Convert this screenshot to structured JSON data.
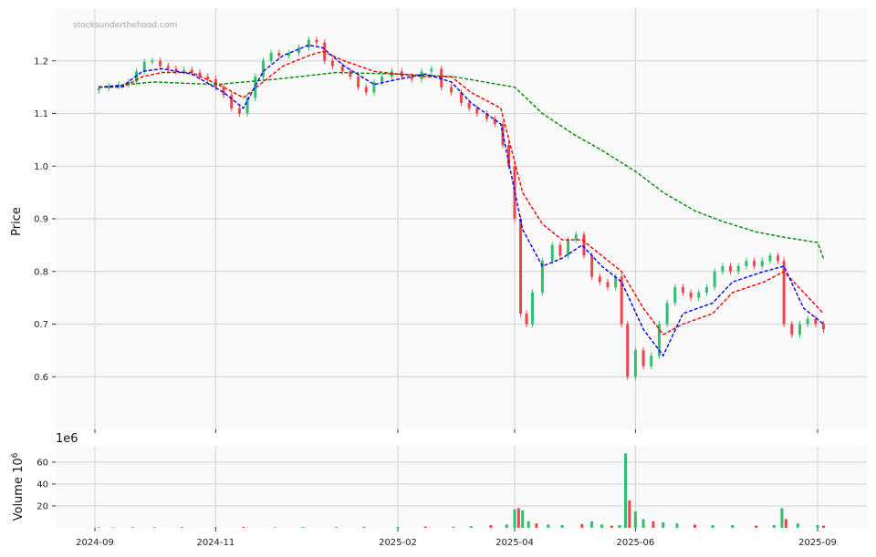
{
  "watermark": "stocksunderthehood.com",
  "colors": {
    "up": "#2fbf71",
    "down": "#e8474b",
    "ma_short": "#0000ee",
    "ma_mid": "#ee0000",
    "ma_long": "#008800",
    "panel_bg": "#f9f9f9",
    "grid": "#d2d2d2"
  },
  "chart_data": [
    {
      "type": "candlestick",
      "ylabel": "Price",
      "ylim": [
        0.5,
        1.3
      ],
      "yticks": [
        "0.6",
        "0.7",
        "0.8",
        "0.9",
        "1.0",
        "1.1",
        "1.2"
      ],
      "xticks": [
        "2024-09",
        "2024-11",
        "2025-02",
        "2025-04",
        "2025-06",
        "2025-09"
      ],
      "grid": true,
      "close_series": [
        [
          "2024-09-03",
          1.148
        ],
        [
          "2024-09-08",
          1.152
        ],
        [
          "2024-09-13",
          1.155
        ],
        [
          "2024-09-18",
          1.16
        ],
        [
          "2024-09-22",
          1.18
        ],
        [
          "2024-09-26",
          1.198
        ],
        [
          "2024-09-30",
          1.2
        ],
        [
          "2024-10-04",
          1.19
        ],
        [
          "2024-10-08",
          1.185
        ],
        [
          "2024-10-12",
          1.18
        ],
        [
          "2024-10-16",
          1.183
        ],
        [
          "2024-10-20",
          1.178
        ],
        [
          "2024-10-24",
          1.17
        ],
        [
          "2024-10-28",
          1.165
        ],
        [
          "2024-11-01",
          1.15
        ],
        [
          "2024-11-05",
          1.135
        ],
        [
          "2024-11-09",
          1.11
        ],
        [
          "2024-11-13",
          1.1
        ],
        [
          "2024-11-17",
          1.13
        ],
        [
          "2024-11-21",
          1.17
        ],
        [
          "2024-11-25",
          1.2
        ],
        [
          "2024-11-29",
          1.215
        ],
        [
          "2024-12-03",
          1.21
        ],
        [
          "2024-12-08",
          1.215
        ],
        [
          "2024-12-13",
          1.225
        ],
        [
          "2024-12-18",
          1.24
        ],
        [
          "2024-12-22",
          1.235
        ],
        [
          "2024-12-26",
          1.2
        ],
        [
          "2024-12-30",
          1.19
        ],
        [
          "2025-01-04",
          1.18
        ],
        [
          "2025-01-08",
          1.17
        ],
        [
          "2025-01-12",
          1.15
        ],
        [
          "2025-01-16",
          1.14
        ],
        [
          "2025-01-20",
          1.16
        ],
        [
          "2025-01-24",
          1.17
        ],
        [
          "2025-01-29",
          1.18
        ],
        [
          "2025-02-03",
          1.17
        ],
        [
          "2025-02-08",
          1.165
        ],
        [
          "2025-02-13",
          1.18
        ],
        [
          "2025-02-18",
          1.185
        ],
        [
          "2025-02-23",
          1.15
        ],
        [
          "2025-02-28",
          1.14
        ],
        [
          "2025-03-05",
          1.12
        ],
        [
          "2025-03-09",
          1.11
        ],
        [
          "2025-03-13",
          1.1
        ],
        [
          "2025-03-18",
          1.09
        ],
        [
          "2025-03-22",
          1.08
        ],
        [
          "2025-03-26",
          1.04
        ],
        [
          "2025-03-29",
          1.0
        ],
        [
          "2025-04-01",
          0.9
        ],
        [
          "2025-04-04",
          0.72
        ],
        [
          "2025-04-07",
          0.7
        ],
        [
          "2025-04-10",
          0.76
        ],
        [
          "2025-04-15",
          0.82
        ],
        [
          "2025-04-20",
          0.85
        ],
        [
          "2025-04-24",
          0.83
        ],
        [
          "2025-04-28",
          0.86
        ],
        [
          "2025-05-02",
          0.87
        ],
        [
          "2025-05-06",
          0.83
        ],
        [
          "2025-05-10",
          0.79
        ],
        [
          "2025-05-14",
          0.78
        ],
        [
          "2025-05-18",
          0.77
        ],
        [
          "2025-05-22",
          0.79
        ],
        [
          "2025-05-25",
          0.7
        ],
        [
          "2025-05-28",
          0.6
        ],
        [
          "2025-06-01",
          0.65
        ],
        [
          "2025-06-05",
          0.62
        ],
        [
          "2025-06-09",
          0.64
        ],
        [
          "2025-06-13",
          0.7
        ],
        [
          "2025-06-17",
          0.74
        ],
        [
          "2025-06-21",
          0.77
        ],
        [
          "2025-06-25",
          0.76
        ],
        [
          "2025-06-29",
          0.75
        ],
        [
          "2025-07-03",
          0.76
        ],
        [
          "2025-07-07",
          0.77
        ],
        [
          "2025-07-11",
          0.8
        ],
        [
          "2025-07-15",
          0.81
        ],
        [
          "2025-07-19",
          0.8
        ],
        [
          "2025-07-23",
          0.81
        ],
        [
          "2025-07-27",
          0.82
        ],
        [
          "2025-07-31",
          0.81
        ],
        [
          "2025-08-04",
          0.82
        ],
        [
          "2025-08-08",
          0.83
        ],
        [
          "2025-08-12",
          0.82
        ],
        [
          "2025-08-15",
          0.7
        ],
        [
          "2025-08-19",
          0.68
        ],
        [
          "2025-08-23",
          0.7
        ],
        [
          "2025-08-27",
          0.71
        ],
        [
          "2025-08-31",
          0.7
        ],
        [
          "2025-09-04",
          0.69
        ]
      ],
      "ma_short": [
        [
          "2024-09-03",
          1.15
        ],
        [
          "2024-09-15",
          1.152
        ],
        [
          "2024-09-25",
          1.18
        ],
        [
          "2024-10-05",
          1.185
        ],
        [
          "2024-10-20",
          1.175
        ],
        [
          "2024-11-05",
          1.14
        ],
        [
          "2024-11-15",
          1.11
        ],
        [
          "2024-11-25",
          1.18
        ],
        [
          "2024-12-05",
          1.21
        ],
        [
          "2024-12-18",
          1.23
        ],
        [
          "2024-12-25",
          1.225
        ],
        [
          "2025-01-05",
          1.19
        ],
        [
          "2025-01-20",
          1.155
        ],
        [
          "2025-02-01",
          1.165
        ],
        [
          "2025-02-15",
          1.175
        ],
        [
          "2025-02-28",
          1.16
        ],
        [
          "2025-03-10",
          1.12
        ],
        [
          "2025-03-25",
          1.08
        ],
        [
          "2025-04-05",
          0.88
        ],
        [
          "2025-04-15",
          0.81
        ],
        [
          "2025-04-25",
          0.825
        ],
        [
          "2025-05-05",
          0.85
        ],
        [
          "2025-05-15",
          0.81
        ],
        [
          "2025-05-25",
          0.78
        ],
        [
          "2025-06-05",
          0.69
        ],
        [
          "2025-06-15",
          0.64
        ],
        [
          "2025-06-25",
          0.72
        ],
        [
          "2025-07-10",
          0.74
        ],
        [
          "2025-07-20",
          0.78
        ],
        [
          "2025-08-05",
          0.8
        ],
        [
          "2025-08-15",
          0.81
        ],
        [
          "2025-08-25",
          0.73
        ],
        [
          "2025-09-04",
          0.7
        ]
      ],
      "ma_mid": [
        [
          "2024-09-03",
          1.15
        ],
        [
          "2024-09-15",
          1.15
        ],
        [
          "2024-09-25",
          1.17
        ],
        [
          "2024-10-05",
          1.178
        ],
        [
          "2024-10-20",
          1.178
        ],
        [
          "2024-11-05",
          1.15
        ],
        [
          "2024-11-15",
          1.13
        ],
        [
          "2024-11-25",
          1.16
        ],
        [
          "2024-12-05",
          1.19
        ],
        [
          "2024-12-18",
          1.21
        ],
        [
          "2024-12-25",
          1.218
        ],
        [
          "2025-01-05",
          1.2
        ],
        [
          "2025-01-20",
          1.18
        ],
        [
          "2025-02-01",
          1.175
        ],
        [
          "2025-02-15",
          1.17
        ],
        [
          "2025-02-28",
          1.17
        ],
        [
          "2025-03-10",
          1.14
        ],
        [
          "2025-03-25",
          1.11
        ],
        [
          "2025-04-05",
          0.95
        ],
        [
          "2025-04-15",
          0.89
        ],
        [
          "2025-04-25",
          0.86
        ],
        [
          "2025-05-05",
          0.86
        ],
        [
          "2025-05-15",
          0.83
        ],
        [
          "2025-05-25",
          0.8
        ],
        [
          "2025-06-05",
          0.73
        ],
        [
          "2025-06-15",
          0.68
        ],
        [
          "2025-06-25",
          0.7
        ],
        [
          "2025-07-10",
          0.72
        ],
        [
          "2025-07-20",
          0.76
        ],
        [
          "2025-08-05",
          0.78
        ],
        [
          "2025-08-15",
          0.8
        ],
        [
          "2025-08-25",
          0.76
        ],
        [
          "2025-09-04",
          0.72
        ]
      ],
      "ma_long": [
        [
          "2024-09-03",
          1.15
        ],
        [
          "2024-10-01",
          1.16
        ],
        [
          "2024-11-01",
          1.155
        ],
        [
          "2024-12-01",
          1.165
        ],
        [
          "2025-01-01",
          1.178
        ],
        [
          "2025-02-01",
          1.175
        ],
        [
          "2025-03-01",
          1.17
        ],
        [
          "2025-04-01",
          1.15
        ],
        [
          "2025-04-15",
          1.1
        ],
        [
          "2025-05-01",
          1.06
        ],
        [
          "2025-05-15",
          1.03
        ],
        [
          "2025-06-01",
          0.99
        ],
        [
          "2025-06-15",
          0.95
        ],
        [
          "2025-07-01",
          0.915
        ],
        [
          "2025-07-15",
          0.895
        ],
        [
          "2025-08-01",
          0.875
        ],
        [
          "2025-08-15",
          0.865
        ],
        [
          "2025-09-01",
          0.855
        ],
        [
          "2025-09-04",
          0.825
        ]
      ]
    },
    {
      "type": "bar",
      "ylabel": "Volume",
      "ylabel_exponent": "10",
      "ylabel_exponent_power": "6",
      "offset_text": "1e6",
      "ylim": [
        0,
        75
      ],
      "yticks": [
        "20",
        "40",
        "60"
      ],
      "grid": true,
      "volume_millions": [
        [
          "2024-09-03",
          0.5
        ],
        [
          "2024-09-10",
          0.4
        ],
        [
          "2024-09-20",
          0.6
        ],
        [
          "2024-10-01",
          0.5
        ],
        [
          "2024-10-15",
          0.7
        ],
        [
          "2024-11-01",
          0.6
        ],
        [
          "2024-11-15",
          0.8
        ],
        [
          "2024-12-01",
          0.5
        ],
        [
          "2024-12-15",
          0.7
        ],
        [
          "2025-01-01",
          0.6
        ],
        [
          "2025-01-15",
          1.0
        ],
        [
          "2025-02-01",
          0.8
        ],
        [
          "2025-02-15",
          1.2
        ],
        [
          "2025-03-01",
          1.0
        ],
        [
          "2025-03-10",
          1.5
        ],
        [
          "2025-03-20",
          2.5
        ],
        [
          "2025-03-28",
          3.0
        ],
        [
          "2025-04-01",
          17.0
        ],
        [
          "2025-04-03",
          18.0
        ],
        [
          "2025-04-05",
          16.0
        ],
        [
          "2025-04-08",
          6.0
        ],
        [
          "2025-04-12",
          4.0
        ],
        [
          "2025-04-18",
          3.0
        ],
        [
          "2025-04-25",
          2.5
        ],
        [
          "2025-05-05",
          3.5
        ],
        [
          "2025-05-10",
          6.0
        ],
        [
          "2025-05-15",
          3.0
        ],
        [
          "2025-05-20",
          2.0
        ],
        [
          "2025-05-24",
          2.5
        ],
        [
          "2025-05-27",
          68.0
        ],
        [
          "2025-05-29",
          25.0
        ],
        [
          "2025-06-01",
          15.0
        ],
        [
          "2025-06-05",
          8.0
        ],
        [
          "2025-06-10",
          6.0
        ],
        [
          "2025-06-15",
          5.0
        ],
        [
          "2025-06-22",
          4.0
        ],
        [
          "2025-07-01",
          3.0
        ],
        [
          "2025-07-10",
          2.5
        ],
        [
          "2025-07-20",
          2.5
        ],
        [
          "2025-08-01",
          2.0
        ],
        [
          "2025-08-10",
          2.5
        ],
        [
          "2025-08-14",
          18.0
        ],
        [
          "2025-08-16",
          8.0
        ],
        [
          "2025-08-22",
          4.0
        ],
        [
          "2025-09-01",
          2.5
        ],
        [
          "2025-09-04",
          2.0
        ]
      ]
    }
  ]
}
